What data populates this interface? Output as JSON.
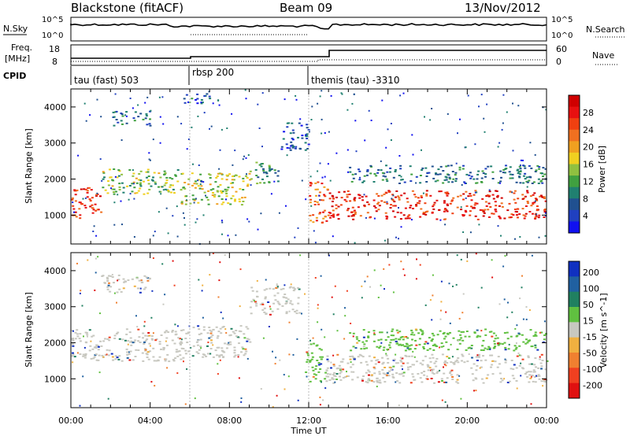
{
  "header": {
    "title_left": "Blackstone (fitACF)",
    "title_center": "Beam 09",
    "title_right": "13/Nov/2012"
  },
  "panels": {
    "nsky": {
      "left_label": "N.Sky",
      "right_label": "N.Search",
      "tick_top": "10^5",
      "tick_bottom": "10^0"
    },
    "freq": {
      "left_label_top": "Freq.",
      "left_label_unit": "[MHz]",
      "right_label": "Nave",
      "left_ticks": [
        "18",
        "8"
      ],
      "right_ticks": [
        "60",
        "0"
      ]
    },
    "cpid": {
      "label": "CPID",
      "segments": [
        {
          "start": 0,
          "end": 6,
          "name": "tau (fast) 503"
        },
        {
          "start": 6,
          "end": 12,
          "name": "rbsp 200"
        },
        {
          "start": 12,
          "end": 24,
          "name": "themis (tau) -3310"
        }
      ]
    }
  },
  "chart_data": [
    {
      "type": "heatmap",
      "name": "Power",
      "ylabel": "Slant Range [km]",
      "xlabel": "Time UT",
      "xlim": [
        0,
        24
      ],
      "ylim": [
        200,
        4500
      ],
      "yticks": [
        1000,
        2000,
        3000,
        4000
      ],
      "xticks": [
        "00:00",
        "04:00",
        "08:00",
        "12:00",
        "16:00",
        "20:00",
        "00:00"
      ],
      "colorbar": {
        "label": "Power [dB]",
        "ticks": [
          "4",
          "8",
          "12",
          "16",
          "20",
          "24",
          "28"
        ],
        "range": [
          0,
          32
        ],
        "colors": [
          "#1010f0",
          "#2040c0",
          "#205090",
          "#208070",
          "#40a040",
          "#90c040",
          "#f0d020",
          "#f0a020",
          "#f07020",
          "#f04010",
          "#e81010",
          "#d00000"
        ]
      },
      "bands": [
        {
          "t0": 0.0,
          "t1": 1.5,
          "r0": 900,
          "r1": 1800,
          "v": 26
        },
        {
          "t0": 1.5,
          "t1": 5.5,
          "r0": 1600,
          "r1": 2300,
          "v": 14
        },
        {
          "t0": 5.5,
          "t1": 9.0,
          "r0": 1300,
          "r1": 2200,
          "v": 16
        },
        {
          "t0": 9.0,
          "t1": 10.5,
          "r0": 1900,
          "r1": 2500,
          "v": 10
        },
        {
          "t0": 10.5,
          "t1": 12.0,
          "r0": 2800,
          "r1": 3600,
          "v": 6
        },
        {
          "t0": 12.0,
          "t1": 13.0,
          "r0": 800,
          "r1": 2000,
          "v": 24
        },
        {
          "t0": 13.0,
          "t1": 24.0,
          "r0": 900,
          "r1": 1700,
          "v": 27
        },
        {
          "t0": 2.0,
          "t1": 4.0,
          "r0": 3500,
          "r1": 3900,
          "v": 8
        },
        {
          "t0": 5.5,
          "t1": 7.0,
          "r0": 4100,
          "r1": 4400,
          "v": 6
        },
        {
          "t0": 14.0,
          "t1": 24.0,
          "r0": 1900,
          "r1": 2400,
          "v": 8
        }
      ]
    },
    {
      "type": "heatmap",
      "name": "Velocity",
      "ylabel": "Slant Range [km]",
      "xlabel": "Time UT",
      "xlim": [
        0,
        24
      ],
      "ylim": [
        200,
        4500
      ],
      "yticks": [
        1000,
        2000,
        3000,
        4000
      ],
      "xticks": [
        "00:00",
        "04:00",
        "08:00",
        "12:00",
        "16:00",
        "20:00",
        "00:00"
      ],
      "colorbar": {
        "label": "Velocity [m s^-1]",
        "ticks": [
          "200",
          "100",
          "50",
          "15",
          "-15",
          "-50",
          "-100",
          "-200"
        ],
        "colors": [
          "#1030c0",
          "#2060a0",
          "#208060",
          "#60c040",
          "#c8c8c0",
          "#f0b040",
          "#f08030",
          "#f04020",
          "#e01010"
        ]
      },
      "bands": [
        {
          "t0": 0.0,
          "t1": 5.5,
          "r0": 1500,
          "r1": 2400,
          "v": 0
        },
        {
          "t0": 5.5,
          "t1": 9.0,
          "r0": 1600,
          "r1": 2500,
          "v": 0
        },
        {
          "t0": 9.0,
          "t1": 11.5,
          "r0": 2800,
          "r1": 3600,
          "v": 0
        },
        {
          "t0": 11.8,
          "t1": 12.8,
          "r0": 900,
          "r1": 2000,
          "v": 40
        },
        {
          "t0": 12.8,
          "t1": 24.0,
          "r0": 900,
          "r1": 1700,
          "v": 0
        },
        {
          "t0": 1.5,
          "t1": 4.0,
          "r0": 3400,
          "r1": 3900,
          "v": 0
        },
        {
          "t0": 14.0,
          "t1": 24.0,
          "r0": 1800,
          "r1": 2400,
          "v": 60
        }
      ]
    }
  ]
}
